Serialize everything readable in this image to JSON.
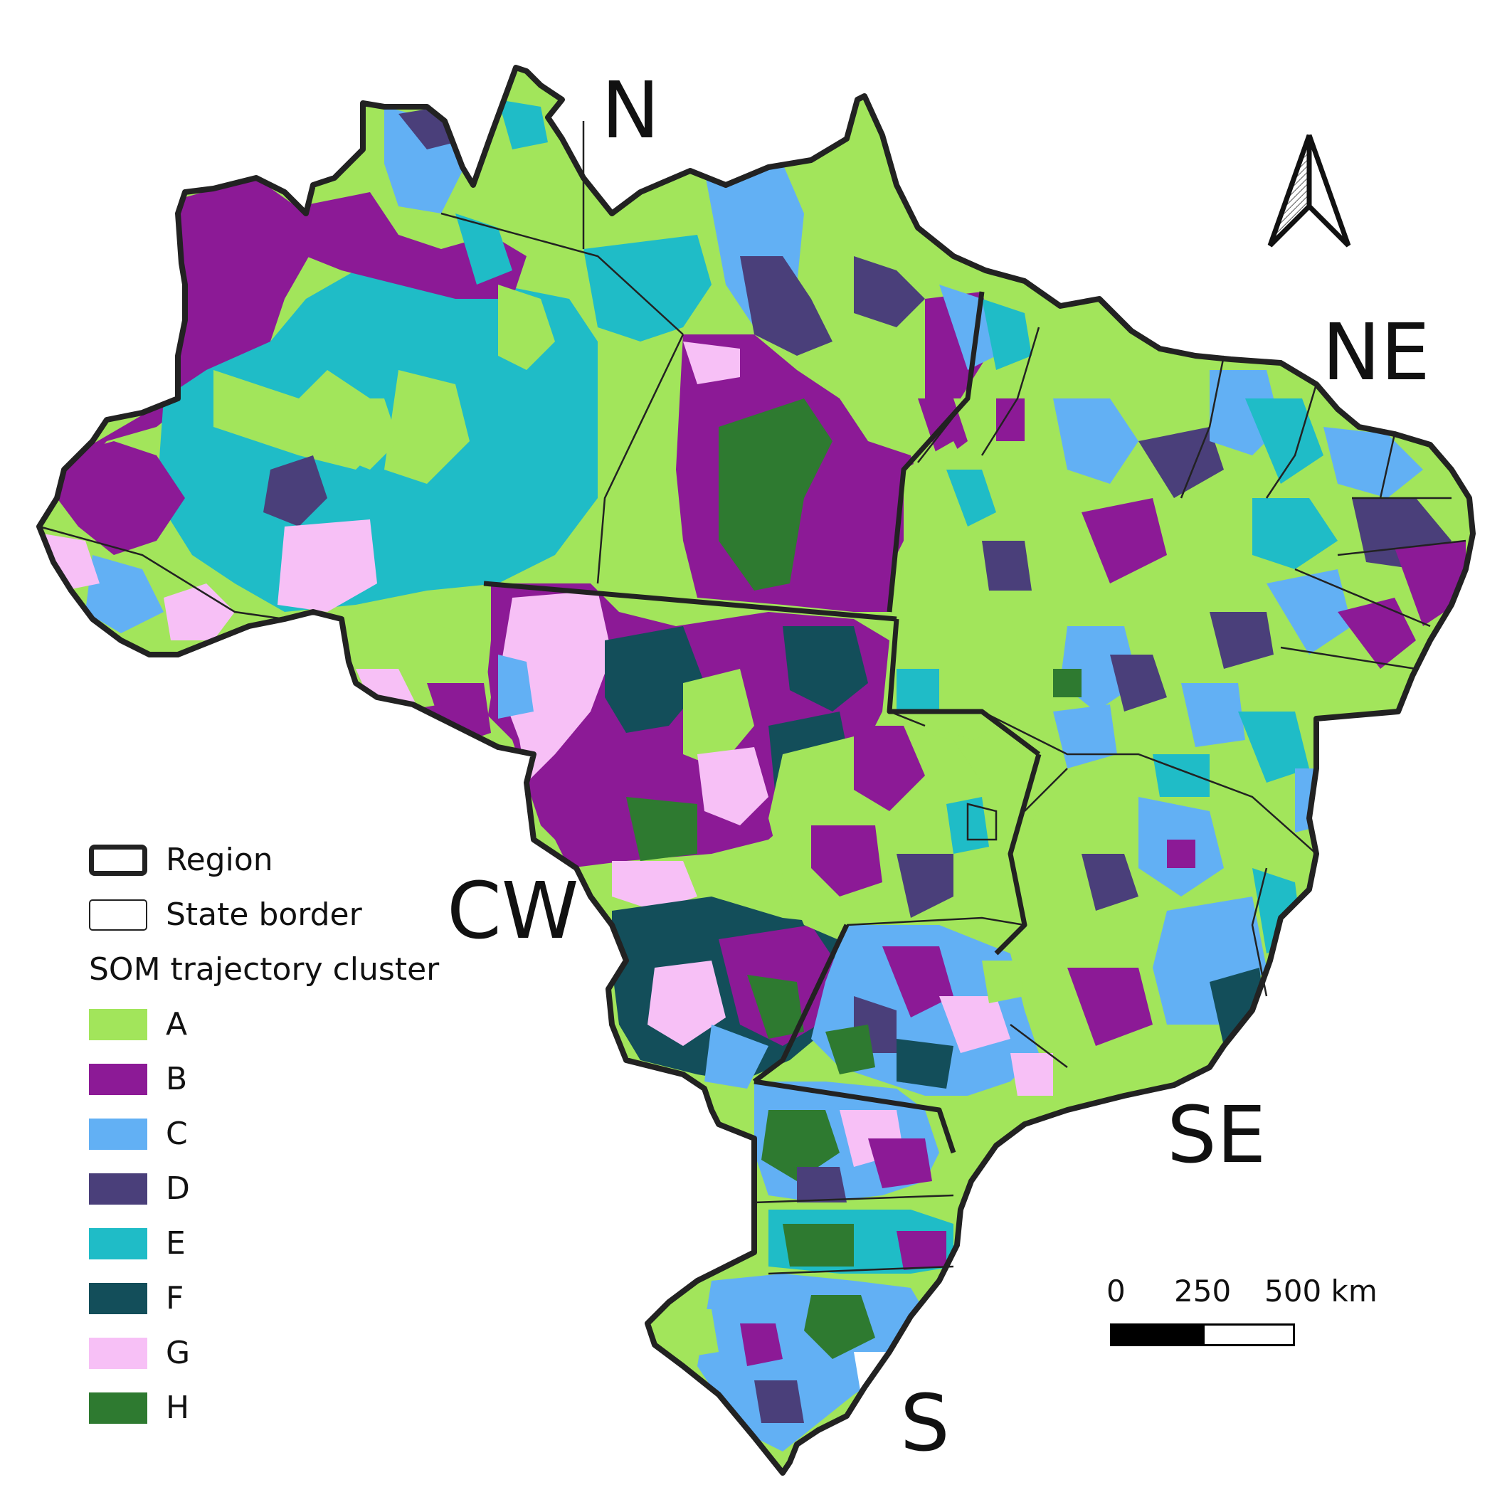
{
  "regions": {
    "n": "N",
    "ne": "NE",
    "cw": "CW",
    "se": "SE",
    "s": "S"
  },
  "legend": {
    "region_label": "Region",
    "state_label": "State border",
    "cluster_title": "SOM trajectory cluster",
    "clusters": [
      {
        "label": "A",
        "color": "#a2e55b"
      },
      {
        "label": "B",
        "color": "#8c1a96"
      },
      {
        "label": "C",
        "color": "#62b0f4"
      },
      {
        "label": "D",
        "color": "#4a3f7a"
      },
      {
        "label": "E",
        "color": "#1fbcc7"
      },
      {
        "label": "F",
        "color": "#134e5a"
      },
      {
        "label": "G",
        "color": "#f7c0f6"
      },
      {
        "label": "H",
        "color": "#2e7a30"
      }
    ]
  },
  "scale": {
    "tick_0": "0",
    "tick_250": "250",
    "tick_500": "500 km"
  },
  "north_arrow_icon": "north-arrow-icon"
}
